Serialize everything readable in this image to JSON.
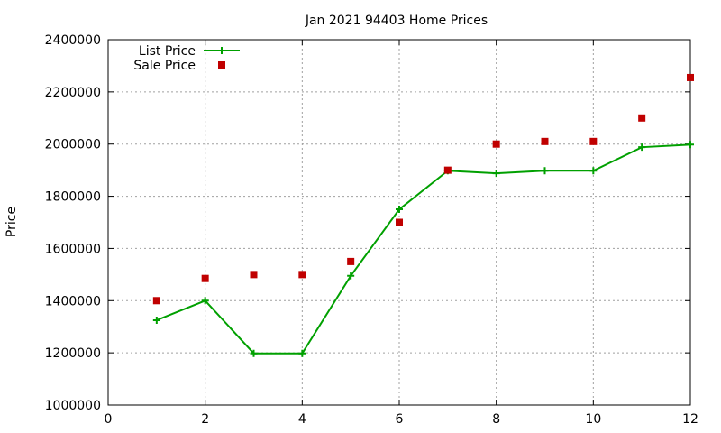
{
  "chart_data": {
    "type": "line",
    "title": "Jan 2021 94403 Home Prices",
    "xlabel": "",
    "ylabel": "Price",
    "xlim": [
      0,
      12
    ],
    "ylim": [
      1000000,
      2400000
    ],
    "xticks": [
      "0",
      "2",
      "4",
      "6",
      "8",
      "10",
      "12"
    ],
    "yticks": [
      "1000000",
      "1200000",
      "1400000",
      "1600000",
      "1800000",
      "2000000",
      "2200000",
      "2400000"
    ],
    "grid": true,
    "legend_position": "top-left",
    "series": [
      {
        "name": "List Price",
        "style": "line-with-plus-markers",
        "color": "#00a000",
        "x": [
          1,
          2,
          3,
          4,
          5,
          6,
          7,
          8,
          9,
          10,
          11,
          12
        ],
        "y": [
          1325000,
          1400000,
          1198000,
          1198000,
          1495000,
          1750000,
          1898000,
          1888000,
          1898000,
          1898000,
          1988000,
          1998000
        ]
      },
      {
        "name": "Sale Price",
        "style": "square-markers",
        "color": "#c00000",
        "x": [
          1,
          2,
          3,
          4,
          5,
          6,
          7,
          8,
          9,
          10,
          11,
          12
        ],
        "y": [
          1400000,
          1485000,
          1500000,
          1500000,
          1550000,
          1700000,
          1900000,
          2000000,
          2010000,
          2010000,
          2100000,
          2255000
        ]
      }
    ]
  }
}
